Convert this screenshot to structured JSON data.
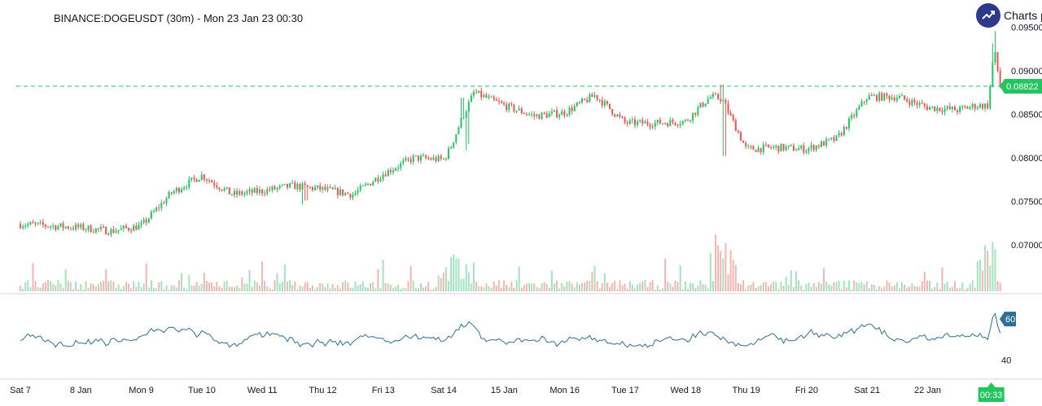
{
  "header": {
    "title": "BINANCE:DOGEUSDT (30m) - Mon 23 Jan 23 00:30",
    "brand_text": "Charts p"
  },
  "colors": {
    "up": "#26a69a",
    "up_bright": "#22c55e",
    "down": "#ef5350",
    "rsi": "#2a6f97",
    "price_tag": "#22c55e",
    "rsi_tag": "#2a6f97",
    "grid": "#e6e8ee",
    "brand_bg": "#2d3a8c"
  },
  "chart_data": {
    "type": "candlestick",
    "symbol": "BINANCE:DOGEUSDT",
    "interval": "30m",
    "price_axis": {
      "ticks": [
        "0.09500",
        "0.09000",
        "0.08500",
        "0.08000",
        "0.07500",
        "0.07000"
      ],
      "range": [
        0.0675,
        0.0955
      ]
    },
    "current_price": {
      "value": 0.08822,
      "label": "0.08822"
    },
    "time_axis": {
      "labels": [
        "Sat 7",
        "8 Jan",
        "Mon 9",
        "Tue 10",
        "Wed 11",
        "Thu 12",
        "Fri 13",
        "Sat 14",
        "15 Jan",
        "Mon 16",
        "Tue 17",
        "Wed 18",
        "Thu 19",
        "Fri 20",
        "Sat 21",
        "22 Jan"
      ],
      "current_time_label": "00:33"
    },
    "price_path": {
      "days": [
        0,
        0.5,
        1,
        1.5,
        2,
        2.5,
        3,
        3.5,
        4,
        4.5,
        5,
        5.5,
        6,
        6.5,
        7,
        7.1,
        7.3,
        7.5,
        8,
        8.5,
        9,
        9.5,
        10,
        10.5,
        11,
        11.4,
        11.6,
        12,
        12.5,
        13,
        13.5,
        14,
        14.5,
        15,
        15.5,
        15.8,
        16,
        16.1,
        16.2
      ],
      "closes": [
        0.0724,
        0.0722,
        0.072,
        0.0716,
        0.0722,
        0.076,
        0.078,
        0.0758,
        0.0762,
        0.0768,
        0.0764,
        0.0758,
        0.0782,
        0.08,
        0.0798,
        0.081,
        0.0845,
        0.0875,
        0.086,
        0.0848,
        0.0852,
        0.0872,
        0.084,
        0.084,
        0.0842,
        0.087,
        0.0868,
        0.081,
        0.0812,
        0.081,
        0.0822,
        0.087,
        0.087,
        0.0858,
        0.0855,
        0.086,
        0.086,
        0.0925,
        0.0882
      ]
    },
    "volume": {
      "label": "Volume",
      "scale": "relative"
    },
    "rsi": {
      "ticks": [
        "60",
        "40"
      ],
      "range": [
        33,
        68
      ],
      "current_value": 60,
      "current_label": "60"
    },
    "grid": false
  }
}
